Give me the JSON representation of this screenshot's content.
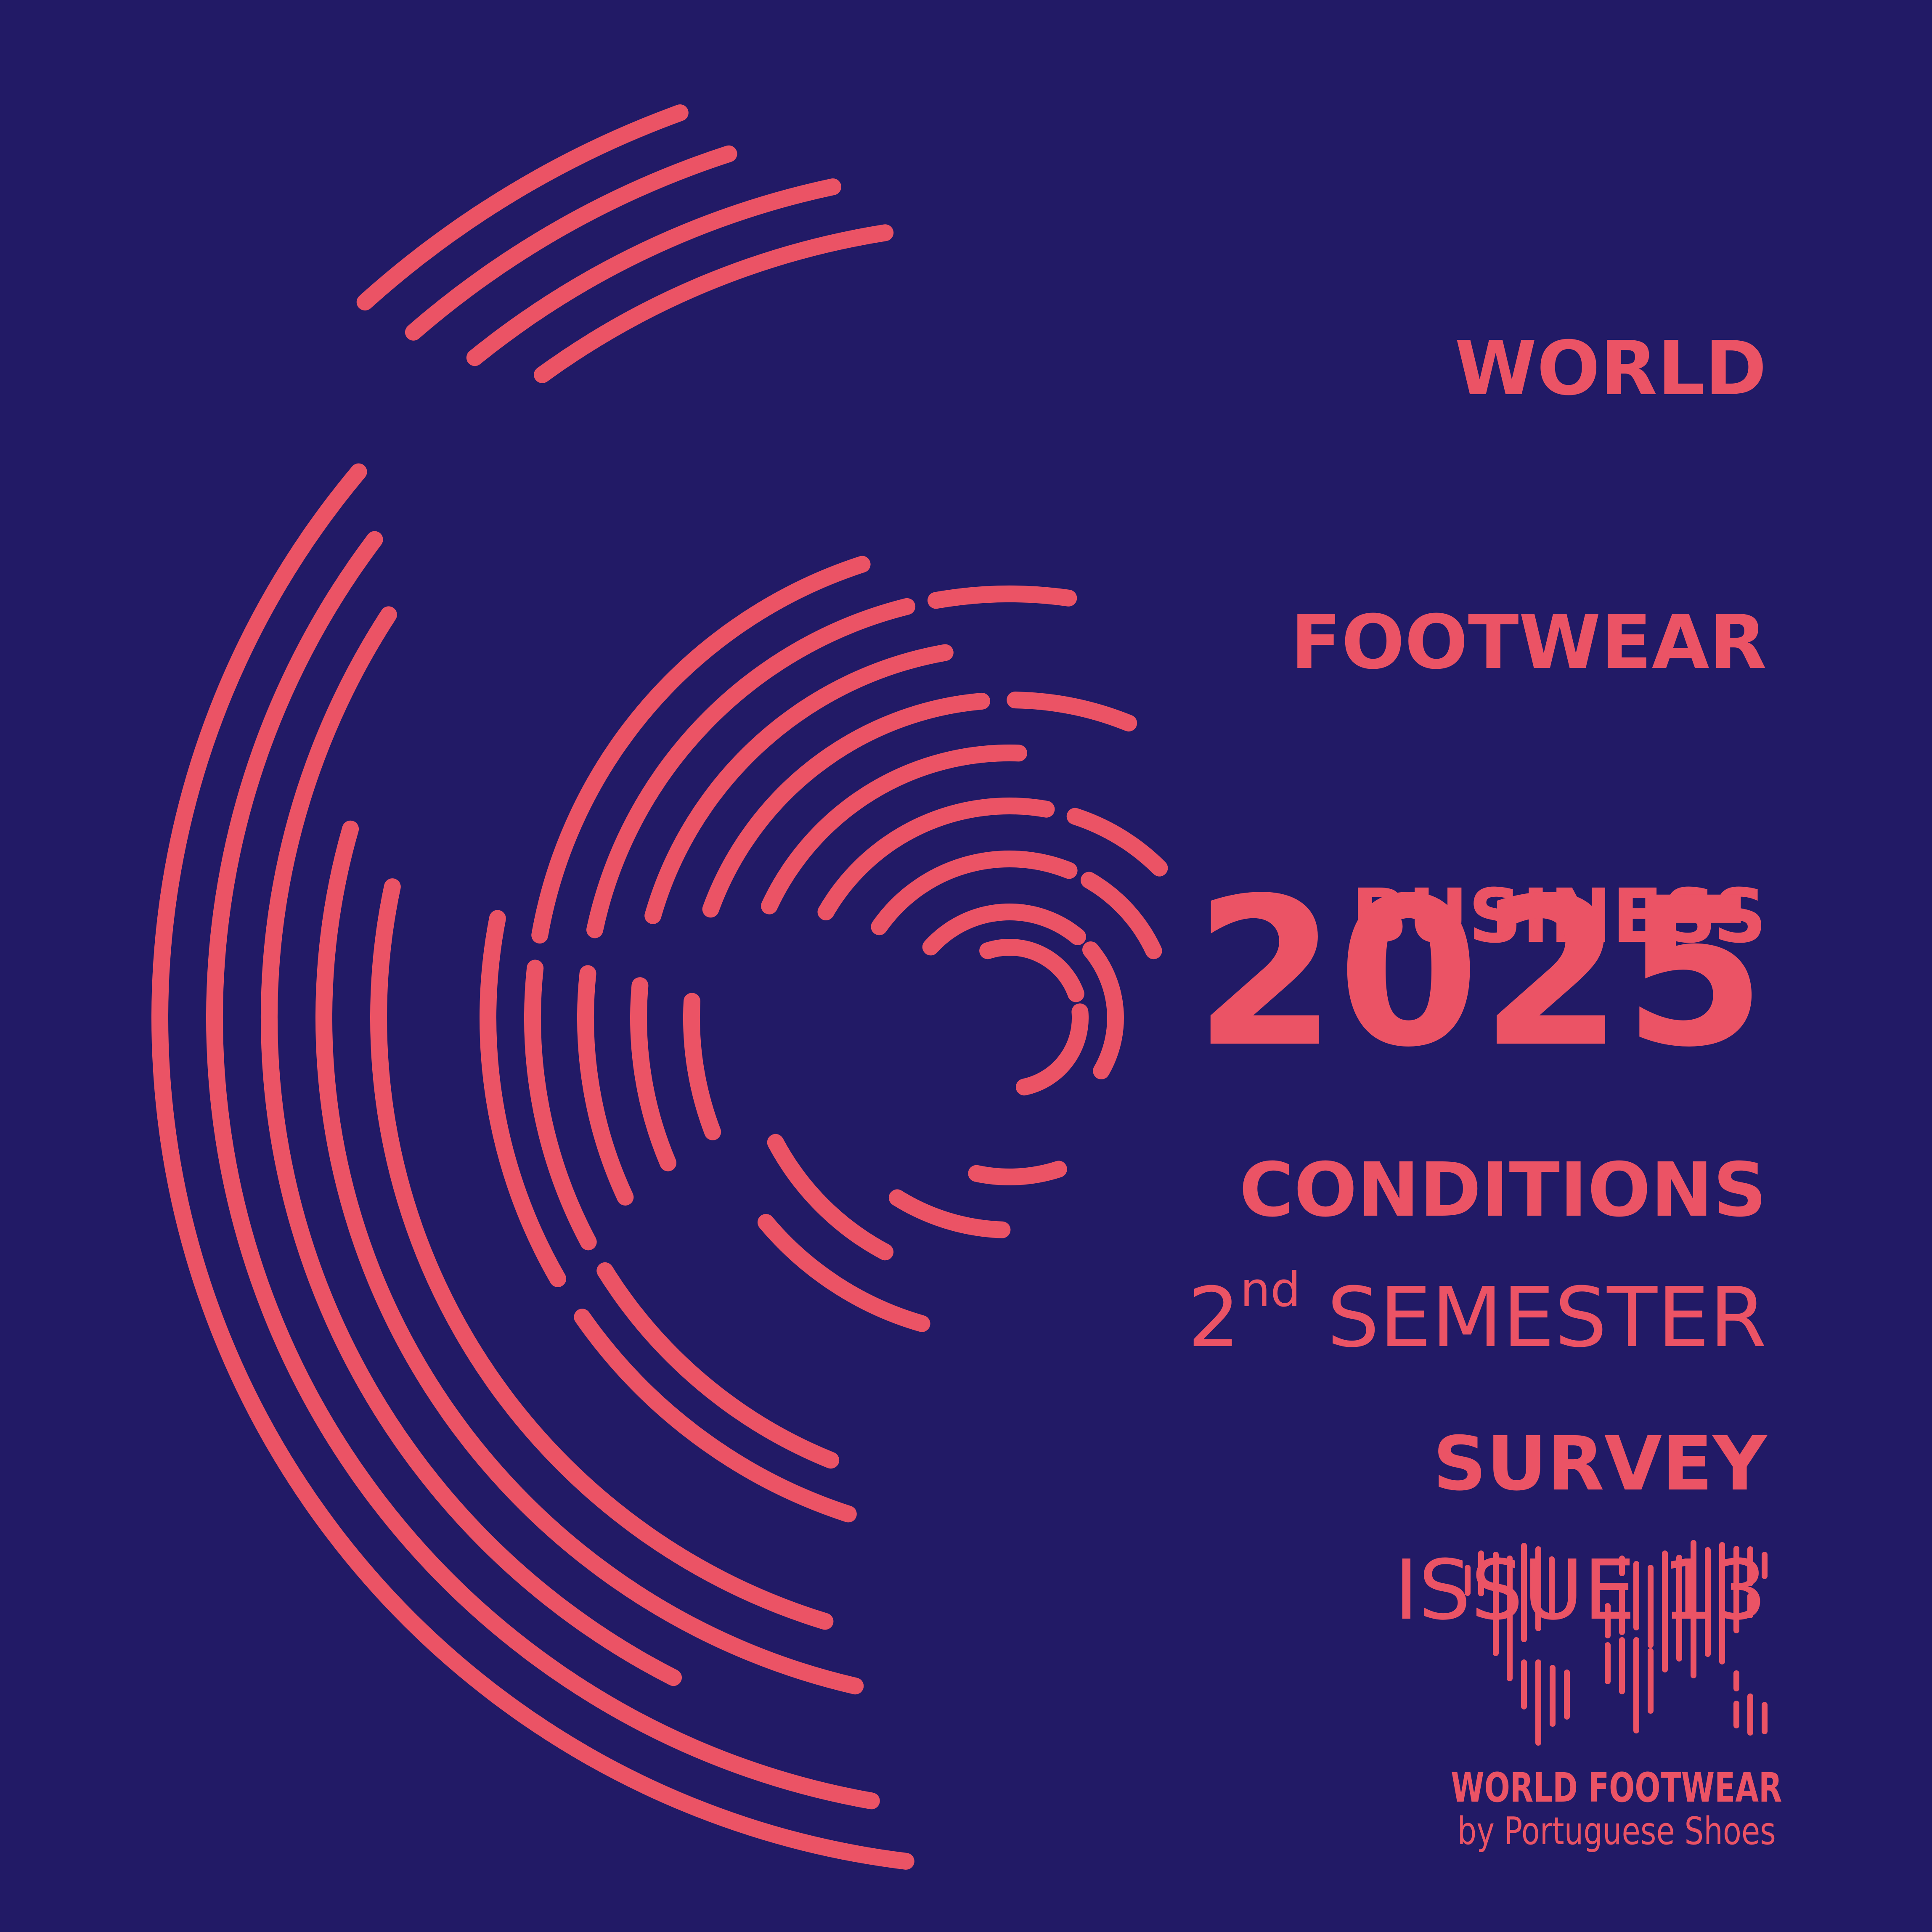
{
  "colors": {
    "background": "#221A66",
    "accent": "#EB5365"
  },
  "title": {
    "lines": [
      "WORLD",
      "FOOTWEAR",
      "BUSINESS",
      "CONDITIONS",
      "SURVEY"
    ]
  },
  "edition": {
    "year": "2025",
    "semester_number": "2",
    "semester_ordinal": "nd",
    "semester_label": " SEMESTER",
    "issue_label": "ISSUE 13"
  },
  "brand": {
    "logo_icon": "world-map-dashes",
    "name": "WORLD FOOTWEAR",
    "byline": "by Portuguese Shoes"
  }
}
